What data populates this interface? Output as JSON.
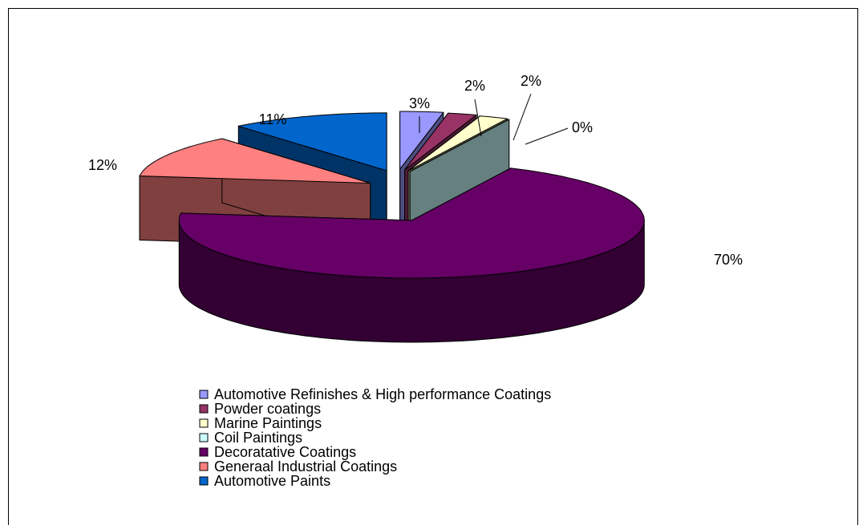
{
  "chart_data": {
    "type": "pie3d",
    "categories": [
      "Automotive Refinishes & High performance Coatings",
      "Powder coatings",
      "Marine Paintings",
      "Coil Paintings",
      "Decoratative Coatings",
      "Generaal Industrial Coatings",
      "Automotive Paints"
    ],
    "values": [
      3,
      2,
      2,
      0,
      70,
      12,
      11
    ],
    "value_labels": [
      "3%",
      "2%",
      "2%",
      "0%",
      "70%",
      "12%",
      "11%"
    ],
    "colors": [
      "#9999ff",
      "#993366",
      "#ffffcc",
      "#ccffff",
      "#660066",
      "#ff8080",
      "#0066cc"
    ],
    "legend": "bottom"
  }
}
